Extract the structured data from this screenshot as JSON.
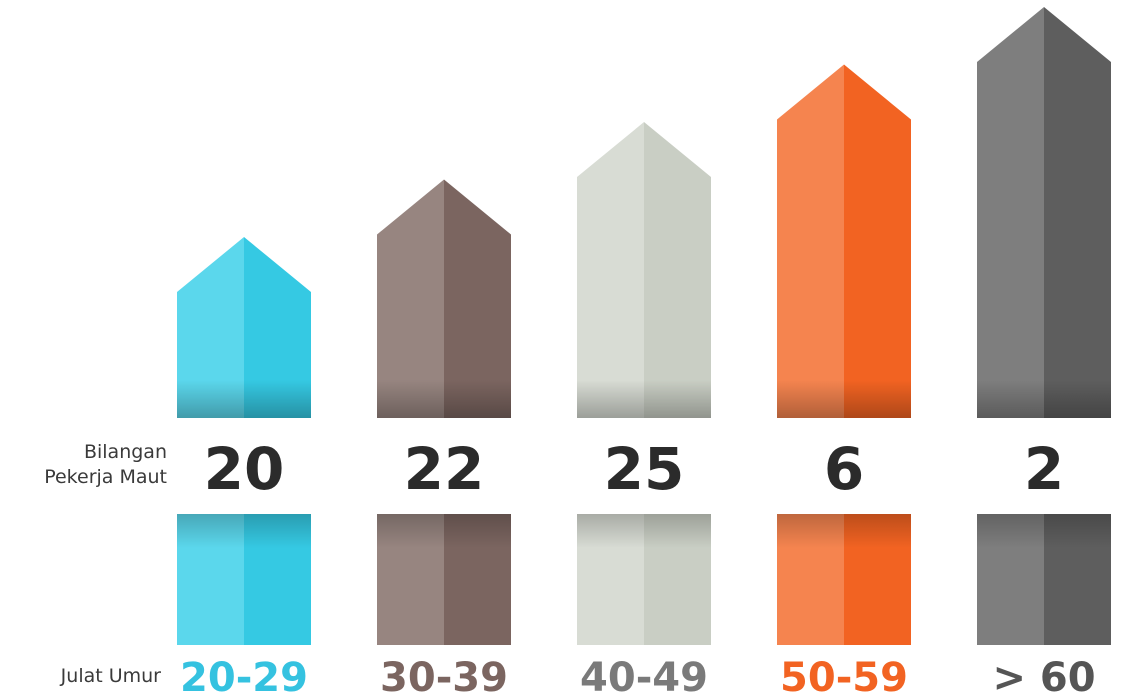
{
  "chart_data": {
    "type": "bar",
    "title": "",
    "xlabel": "Julat Umur",
    "ylabel": "Bilangan Pekerja Maut",
    "categories": [
      "20-29",
      "30-39",
      "40-49",
      "50-59",
      "> 60"
    ],
    "values": [
      20,
      22,
      25,
      6,
      2
    ],
    "value_labels": [
      "20",
      "22",
      "25",
      "6",
      "2"
    ],
    "colors": [
      {
        "light": "#5BD7EC",
        "dark": "#35C9E3",
        "label": "#35C2E0"
      },
      {
        "light": "#978580",
        "dark": "#7B6560",
        "label": "#7B6560"
      },
      {
        "light": "#D8DCD4",
        "dark": "#C9CEC4",
        "label": "#7A7A7A"
      },
      {
        "light": "#F5844F",
        "dark": "#F26322",
        "label": "#F26322"
      },
      {
        "light": "#7E7E7E",
        "dark": "#5E5E5E",
        "label": "#555555"
      }
    ],
    "grid": false,
    "legend": "none"
  },
  "labels": {
    "value_row": "Bilangan\nPekerja Maut",
    "category_row": "Julat Umur"
  }
}
